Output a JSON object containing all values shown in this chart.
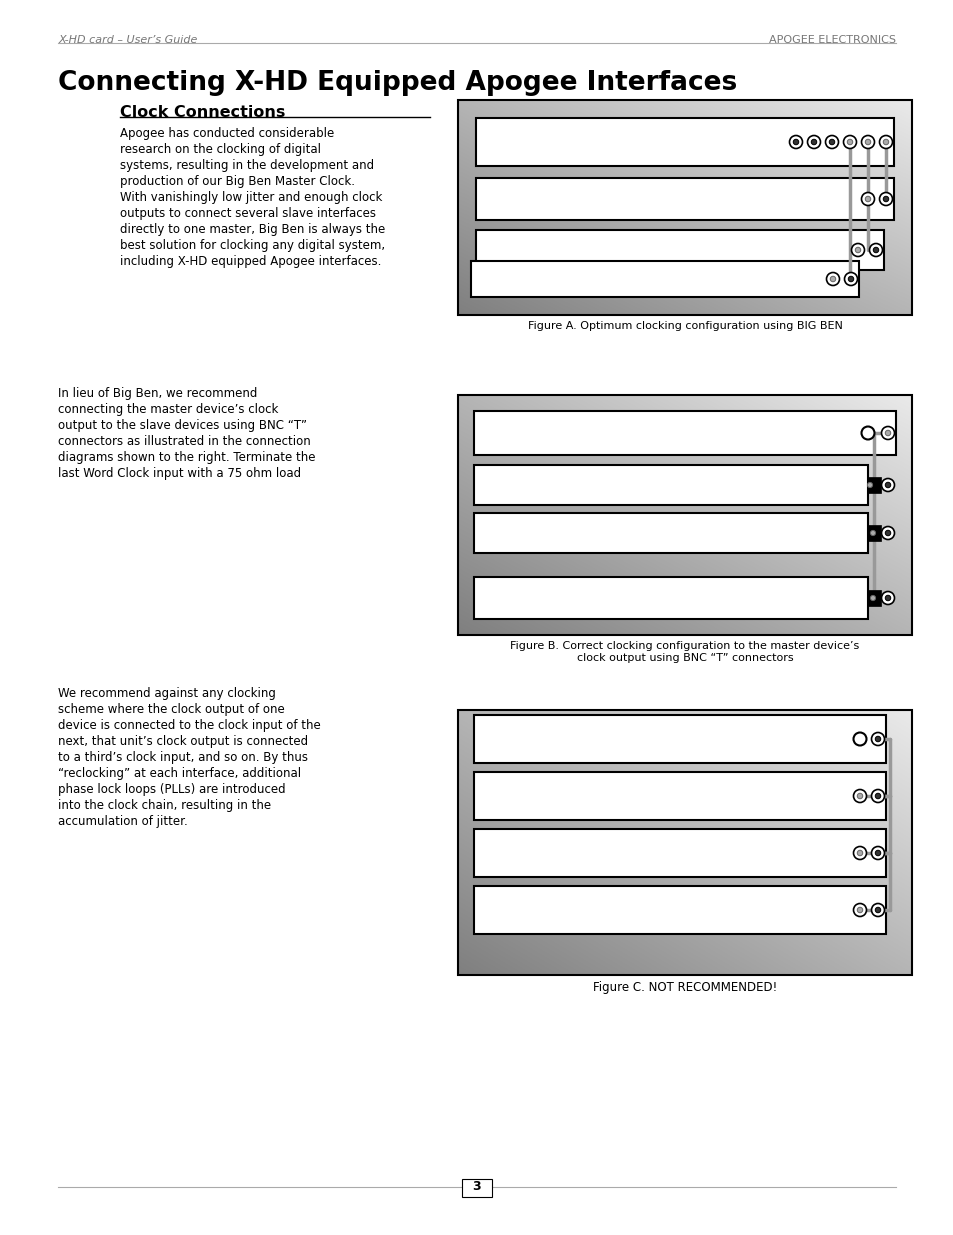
{
  "page_title": "Connecting X-HD Equipped Apogee Interfaces",
  "header_left": "X-HD card – User’s Guide",
  "header_right": "APOGEE ELECTRONICS",
  "section_title": "Clock Connections",
  "page_number": "3",
  "para1": "Apogee has conducted considerable\nresearch on the clocking of digital\nsystems, resulting in the development and\nproduction of our Big Ben Master Clock.\nWith vanishingly low jitter and enough clock\noutputs to connect several slave interfaces\ndirectly to one master, Big Ben is always the\nbest solution for clocking any digital system,\nincluding X-HD equipped Apogee interfaces.",
  "fig_a_caption": "Figure A. Optimum clocking configuration using BIG BEN",
  "para2": "In lieu of Big Ben, we recommend\nconnecting the master device’s clock\noutput to the slave devices using BNC “T”\nconnectors as illustrated in the connection\ndiagrams shown to the right. Terminate the\nlast Word Clock input with a 75 ohm load",
  "fig_b_caption1": "Figure B. Correct clocking configuration to the master device’s",
  "fig_b_caption2": "clock output using BNC “T” connectors",
  "para3": "We recommend against any clocking\nscheme where the clock output of one\ndevice is connected to the clock input of the\nnext, that unit’s clock output is connected\nto a third’s clock input, and so on. By thus\n“reclocking” at each interface, additional\nphase lock loops (PLLs) are introduced\ninto the clock chain, resulting in the\naccumulation of jitter.",
  "fig_c_caption": "Figure C. NOT RECOMMENDED!",
  "bg_color": "#ffffff",
  "wire_color": "#999999",
  "gradient_top": "#888888",
  "gradient_bottom": "#cccccc"
}
